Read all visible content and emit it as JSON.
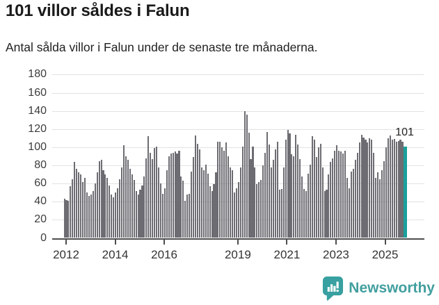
{
  "header": {
    "title": "101 villor såldes i Falun",
    "subtitle": "Antal sålda villor i Falun under de senaste tre månaderna."
  },
  "chart_data": {
    "type": "bar",
    "title": "101 villor såldes i Falun",
    "subtitle": "Antal sålda villor i Falun under de senaste tre månaderna.",
    "xlabel": "",
    "ylabel": "",
    "ylim": [
      0,
      180
    ],
    "y_ticks": [
      0,
      20,
      40,
      60,
      80,
      100,
      120,
      140,
      160,
      180
    ],
    "x_tick_labels": [
      "2012",
      "2014",
      "2016",
      "2019",
      "2021",
      "2023",
      "2025"
    ],
    "x_tick_years": [
      2012,
      2014,
      2016,
      2019,
      2021,
      2023,
      2025
    ],
    "grid": true,
    "legend_position": "none",
    "period_start": "2012-01",
    "period_end": "2025-11",
    "frequency": "monthly",
    "values": [
      43,
      42,
      41,
      57,
      65,
      84,
      76,
      72,
      70,
      62,
      66,
      50,
      46,
      48,
      52,
      60,
      72,
      85,
      86,
      75,
      70,
      66,
      58,
      48,
      45,
      50,
      55,
      65,
      78,
      102,
      90,
      86,
      76,
      70,
      64,
      52,
      48,
      53,
      58,
      68,
      88,
      112,
      94,
      87,
      99,
      101,
      78,
      60,
      49,
      55,
      75,
      90,
      93,
      94,
      95,
      93,
      96,
      68,
      63,
      41,
      48,
      49,
      73,
      89,
      113,
      104,
      98,
      78,
      75,
      81,
      71,
      57,
      52,
      59,
      72,
      106,
      106,
      100,
      96,
      105,
      90,
      78,
      75,
      50,
      55,
      62,
      78,
      101,
      140,
      136,
      116,
      87,
      101,
      78,
      59,
      62,
      64,
      80,
      94,
      117,
      103,
      78,
      86,
      98,
      106,
      53,
      54,
      78,
      108,
      119,
      115,
      92,
      90,
      114,
      103,
      87,
      68,
      54,
      52,
      71,
      81,
      112,
      108,
      89,
      100,
      104,
      78,
      52,
      53,
      70,
      84,
      88,
      96,
      102,
      96,
      95,
      93,
      96,
      66,
      55,
      73,
      76,
      86,
      94,
      105,
      114,
      111,
      108,
      105,
      110,
      108,
      94,
      66,
      72,
      65,
      75,
      85,
      100,
      110,
      113,
      108,
      109,
      106,
      107,
      108,
      106,
      101
    ],
    "highlight_index": 166,
    "highlight_value": 101,
    "annotation_label": "101",
    "bar_color": "#6d6c72",
    "highlight_color": "#1aa09c",
    "gridline_color": "#e2e2e2",
    "axis_color": "#4d4d4d"
  },
  "footer": {
    "brand": "Newsworthy",
    "logo_icon": "newsworthy-speech-bubble-chart-icon",
    "brand_color": "#429e9e"
  }
}
